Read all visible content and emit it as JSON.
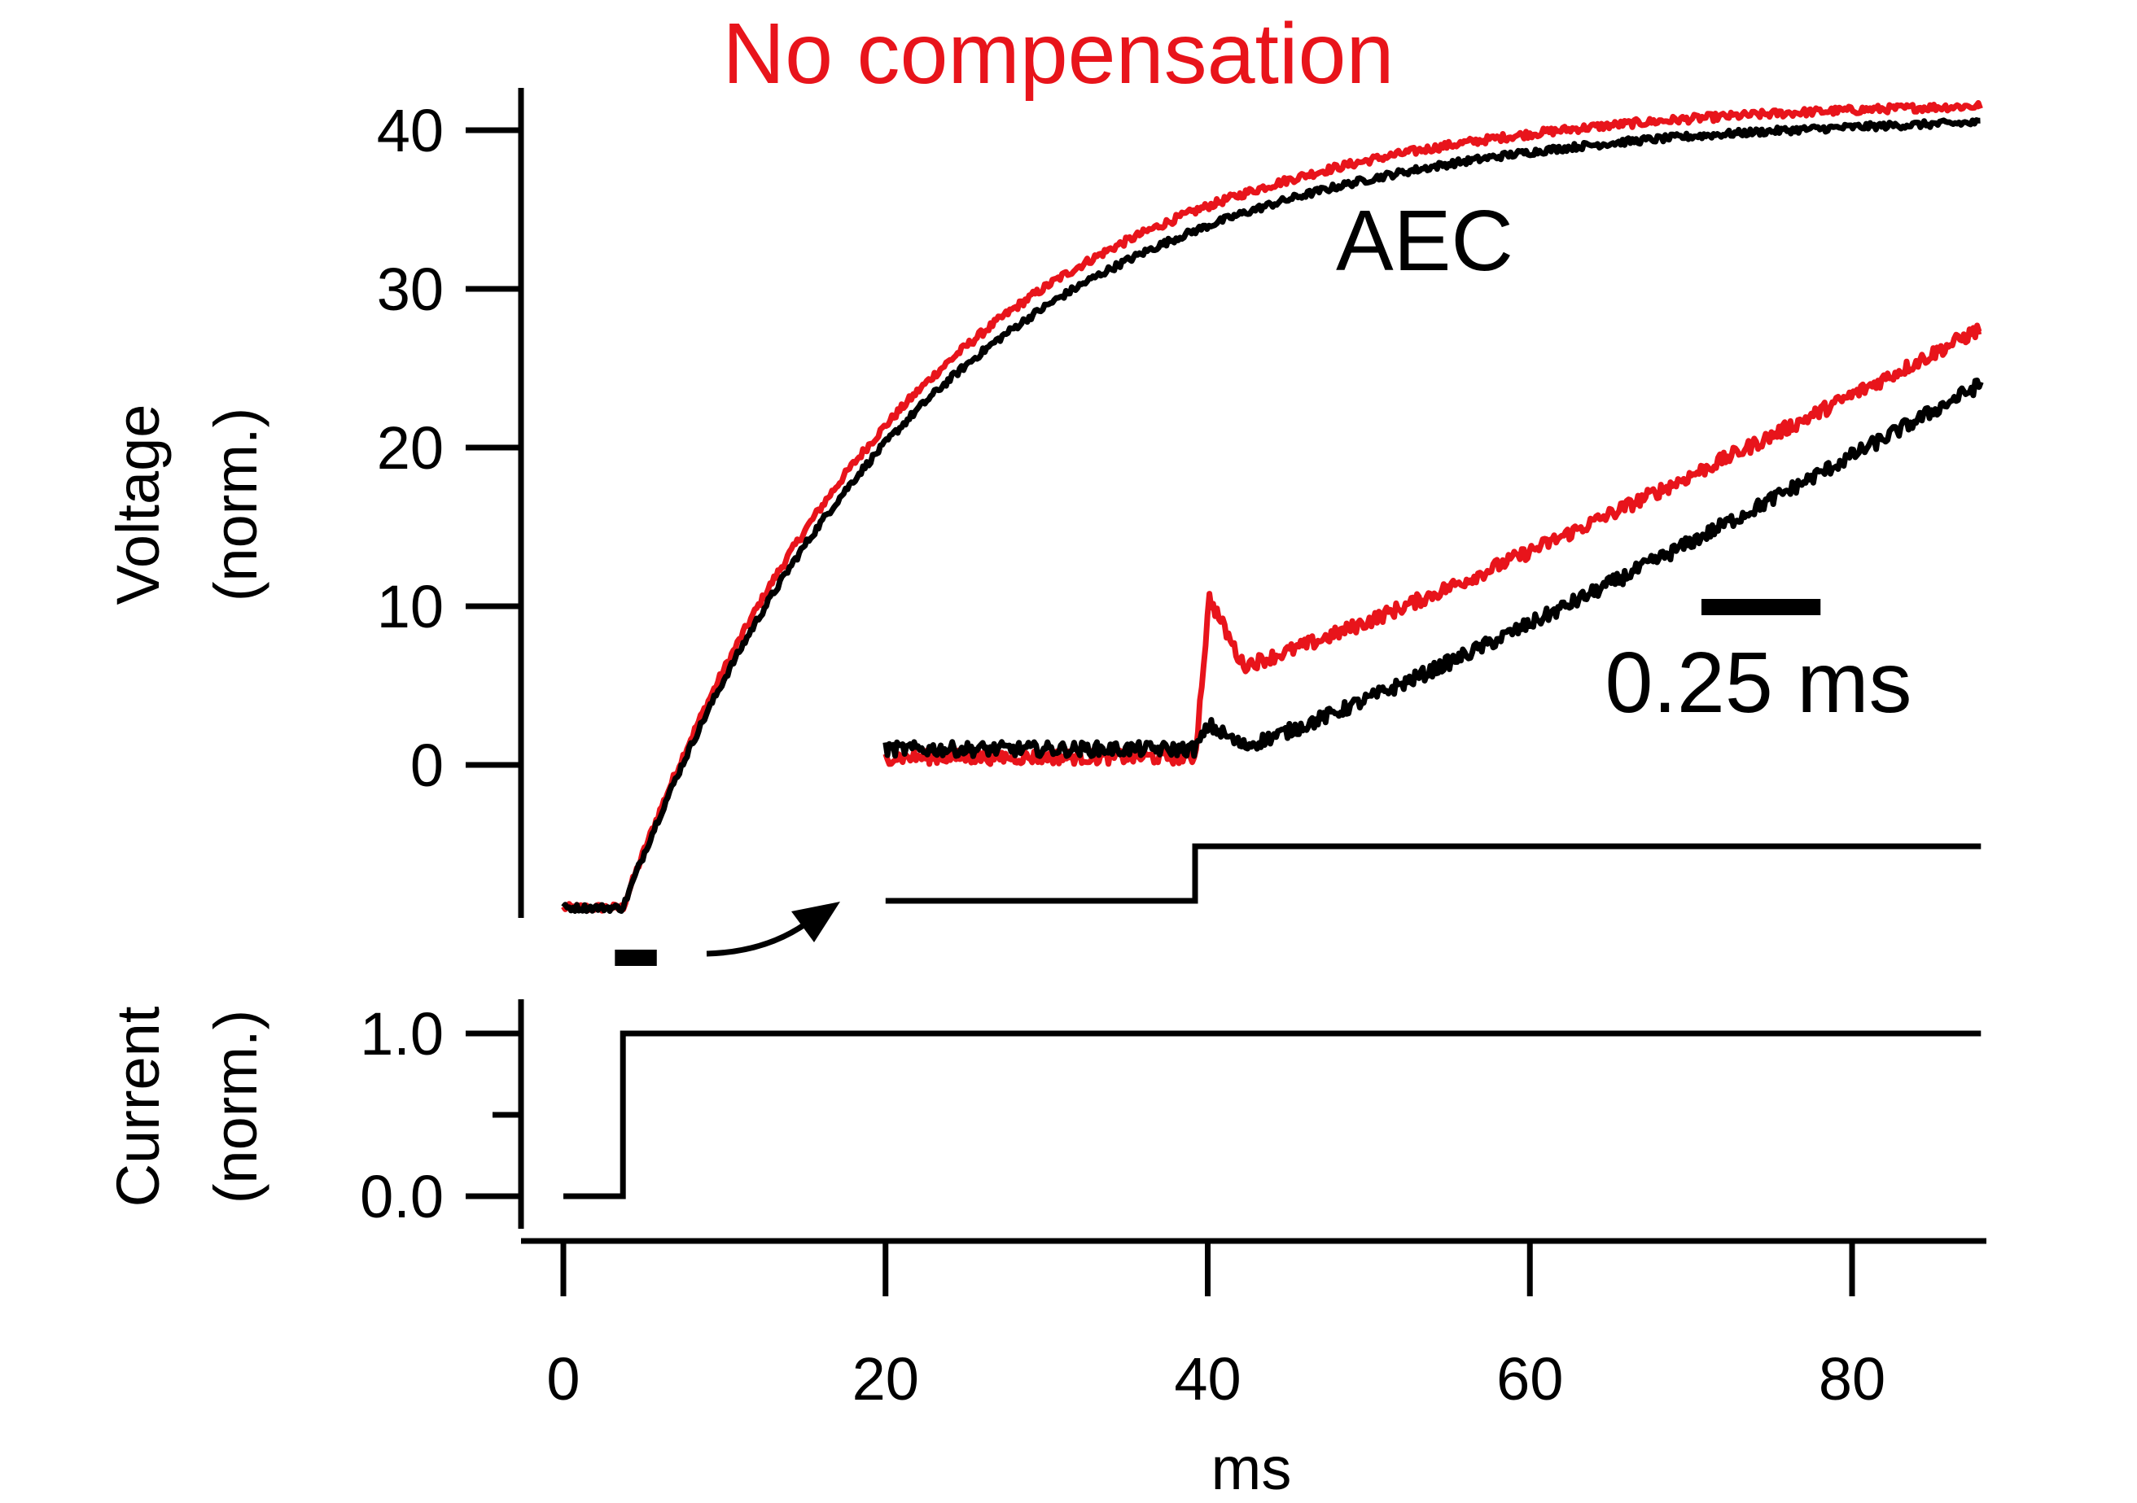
{
  "chart_data": {
    "type": "line",
    "title": "No compensation",
    "x_unit_label": "ms",
    "xlim": [
      -1.5,
      88
    ],
    "xticks": [
      0,
      20,
      40,
      60,
      80
    ],
    "colors": {
      "no_compensation": "#e8141b",
      "aec": "#000000",
      "axis": "#000000"
    },
    "panels": [
      {
        "id": "voltage",
        "ylabel_line1": "Voltage",
        "ylabel_line2": "(norm.)",
        "ylim": [
          -9,
          41.5
        ],
        "yticks": [
          0,
          10,
          20,
          30,
          40
        ],
        "yticks_minor": [],
        "series": [
          {
            "key": "no_compensation",
            "name": "No compensation",
            "tau": 18,
            "baseline": -9,
            "amplitude": 51,
            "onset": 3.7,
            "x_end": 88,
            "noise": 0.25
          },
          {
            "key": "aec",
            "name": "AEC",
            "tau": 18.5,
            "baseline": -9,
            "amplitude": 50,
            "onset": 3.7,
            "x_end": 88,
            "noise": 0.22
          }
        ]
      },
      {
        "id": "current",
        "ylabel_line1": "Current",
        "ylabel_line2": "(norm.)",
        "ylim": [
          -0.1,
          1.15
        ],
        "yticks": [
          0.0,
          1.0
        ],
        "ytick_labels": [
          "0.0",
          "1.0"
        ],
        "yticks_minor": [
          0.5
        ],
        "step": {
          "x_start": 0,
          "onset": 3.7,
          "x_end": 88,
          "low": 0.0,
          "high": 1.0
        }
      }
    ],
    "inset": {
      "scale_bar_label": "0.25 ms",
      "scale_bar_ms": 0.25,
      "time_range_ms": [
        0,
        2.3
      ],
      "step_onset_ms": 0.65,
      "x_start_main_ms": 20,
      "x_end_main_ms": 88,
      "zoom_marker_main_ms": [
        3.2,
        5.8
      ],
      "series": [
        {
          "key": "no_compensation",
          "label": "No compensation",
          "start": 0.5,
          "artifact_peak": 10.5,
          "after_artifact": 6.3,
          "end": 27.5
        },
        {
          "key": "aec",
          "label": "AEC",
          "start": 1.0,
          "artifact_peak": 2.5,
          "after_artifact": 1.2,
          "end": 24.0
        }
      ]
    }
  }
}
